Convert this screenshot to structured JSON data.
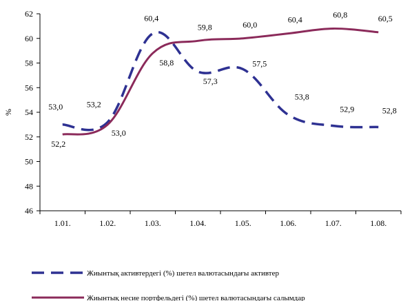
{
  "chart_data": {
    "type": "line",
    "title": "",
    "xlabel": "",
    "ylabel": "%",
    "ylim": [
      46,
      62
    ],
    "yticks": [
      46,
      48,
      50,
      52,
      54,
      56,
      58,
      60,
      62
    ],
    "categories": [
      "1.01.",
      "1.02.",
      "1.03.",
      "1.04.",
      "1.05.",
      "1.06.",
      "1.07.",
      "1.08."
    ],
    "grid": false,
    "legend_position": "bottom",
    "series": [
      {
        "name": "Жиынтық активтердегі (%) шетел валютасындағы активтер",
        "values": [
          53.0,
          53.2,
          60.4,
          57.3,
          57.5,
          53.8,
          52.9,
          52.8
        ],
        "labels": [
          "53,0",
          "53,2",
          "60,4",
          "57,3",
          "57,5",
          "53,8",
          "52,9",
          "52,8"
        ],
        "color": "#2e3192",
        "style": "dashed"
      },
      {
        "name": "Жиынтық несие портфельдегі (%) шетел валютасындағы салымдар",
        "values": [
          52.2,
          53.0,
          58.8,
          59.8,
          60.0,
          60.4,
          60.8,
          60.5
        ],
        "labels": [
          "52,2",
          "53,0",
          "58,8",
          "59,8",
          "60,0",
          "60,4",
          "60,8",
          "60,5"
        ],
        "color": "#8b2a5a",
        "style": "solid"
      }
    ]
  }
}
